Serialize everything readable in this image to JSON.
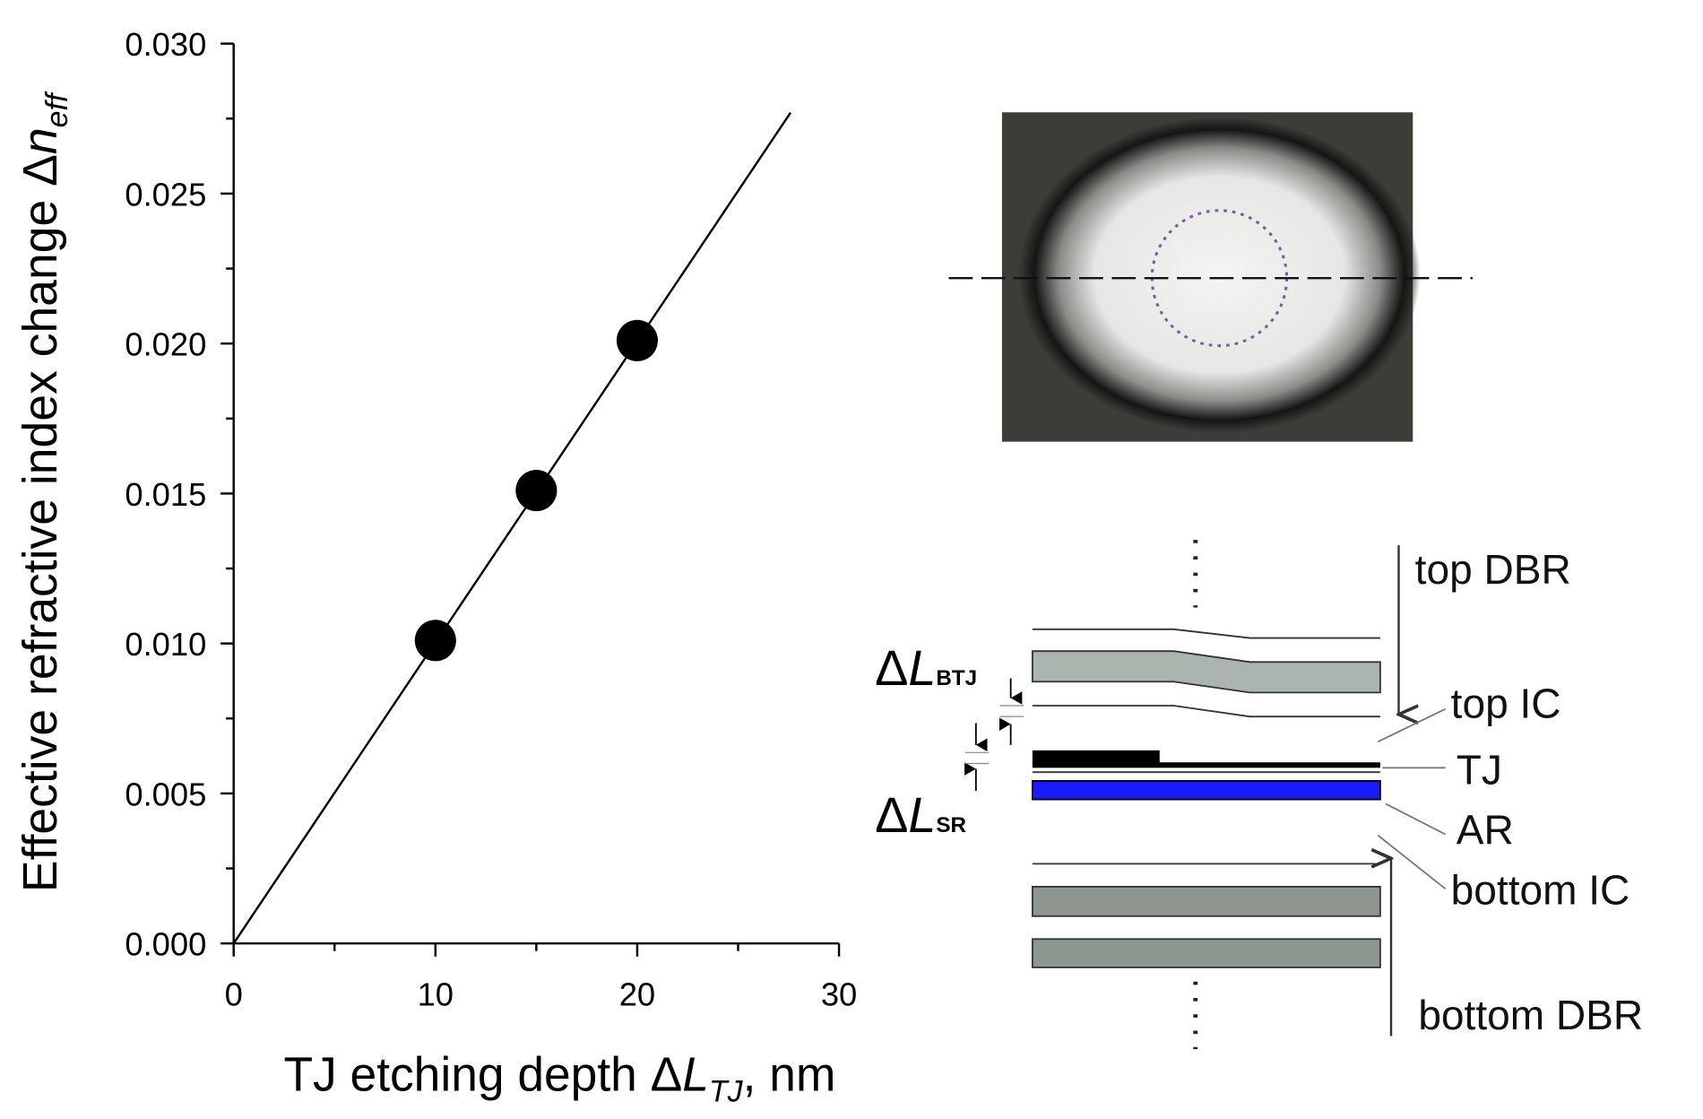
{
  "chart_data": {
    "type": "scatter",
    "xlabel": [
      "TJ etching depth Δ",
      "L",
      "TJ",
      ", nm"
    ],
    "ylabel": [
      "Effective refractive index change Δ",
      "n",
      "eff"
    ],
    "xlim": [
      0,
      30
    ],
    "ylim": [
      0,
      0.03
    ],
    "xticks": [
      0,
      10,
      20,
      30
    ],
    "xminorticks": [
      5,
      15,
      25
    ],
    "yticks": [
      {
        "value": 0,
        "label": "0.000"
      },
      {
        "value": 0.005,
        "label": "0.005"
      },
      {
        "value": 0.01,
        "label": "0.010"
      },
      {
        "value": 0.015,
        "label": "0.015"
      },
      {
        "value": 0.02,
        "label": "0.020"
      },
      {
        "value": 0.025,
        "label": "0.025"
      },
      {
        "value": 0.03,
        "label": "0.030"
      }
    ],
    "yminorticks": [
      0.0025,
      0.0075,
      0.0125,
      0.0175,
      0.0225,
      0.0275
    ],
    "series": [
      {
        "type": "scatter",
        "color": "#000000",
        "x": [
          10,
          15,
          20
        ],
        "values": [
          0.0101,
          0.0151,
          0.0201
        ]
      },
      {
        "type": "line",
        "color": "#000000",
        "x": [
          0,
          27.6
        ],
        "values": [
          0,
          0.0277
        ]
      }
    ]
  },
  "diagram": {
    "labels": [
      "top DBR",
      "top IC",
      "TJ",
      "AR",
      "bottom IC",
      "bottom DBR"
    ],
    "delta_btj": [
      "Δ",
      "L",
      "BTJ"
    ],
    "delta_sr": [
      "Δ",
      "L",
      "SR"
    ]
  }
}
